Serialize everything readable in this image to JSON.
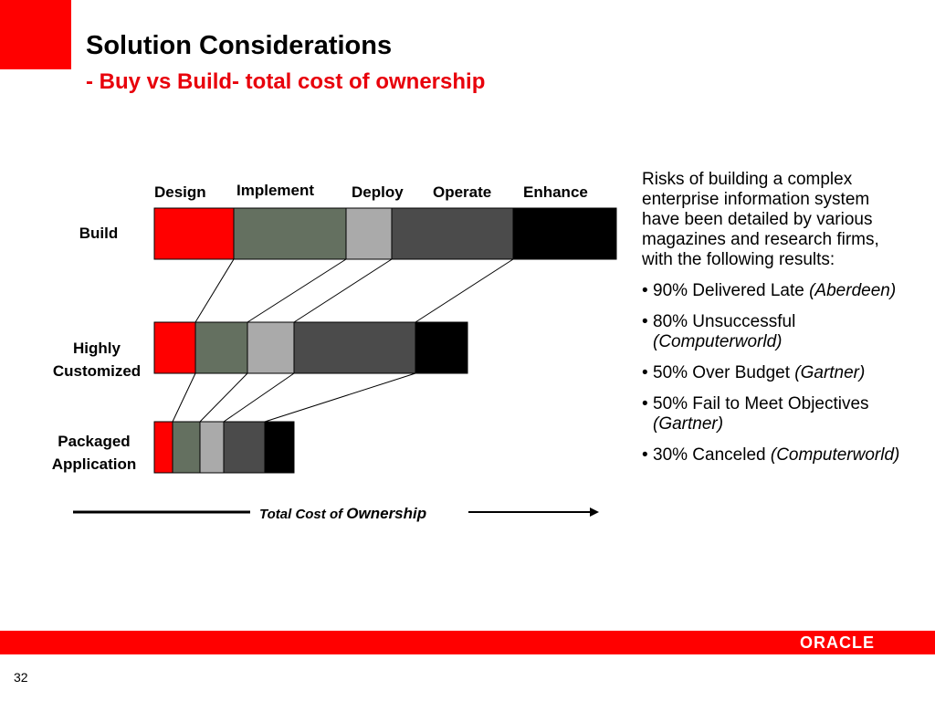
{
  "title": "Solution Considerations",
  "subtitle": "- Buy vs Build- total cost of ownership",
  "phases": [
    "Design",
    "Implement",
    "Deploy",
    "Operate",
    "Enhance"
  ],
  "rows": [
    {
      "label_line1": "Build",
      "label_line2": "",
      "segments": [
        87,
        123,
        50,
        133,
        113
      ]
    },
    {
      "label_line1": "Highly",
      "label_line2": "Customized",
      "segments": [
        45,
        57,
        51,
        133,
        57
      ]
    },
    {
      "label_line1": "Packaged",
      "label_line2": "Application",
      "segments": [
        20,
        30,
        26,
        45,
        32
      ]
    }
  ],
  "colors": {
    "accent": "#ff0000",
    "design": "#ff0000",
    "implement": "#647060",
    "deploy": "#aaaaaa",
    "operate": "#4b4b4b",
    "enhance": "#000000"
  },
  "tco": {
    "prefix": "Total Cost of ",
    "emphasis": "Ownership"
  },
  "right_panel": {
    "intro": "Risks of building a complex enterprise information system have been detailed by various magazines and research firms, with the following results:",
    "bullets": [
      {
        "text": "90% Delivered Late ",
        "source": "(Aberdeen)"
      },
      {
        "text": "80% Unsuccessful ",
        "source": "(Computerworld)"
      },
      {
        "text": "50% Over Budget ",
        "source": "(Gartner)"
      },
      {
        "text": "50% Fail to Meet Objectives ",
        "source": "(Gartner)"
      },
      {
        "text": "30% Canceled ",
        "source": "(Computerworld)"
      }
    ]
  },
  "footer": {
    "logo": "ORACLE",
    "page_number": "32"
  }
}
